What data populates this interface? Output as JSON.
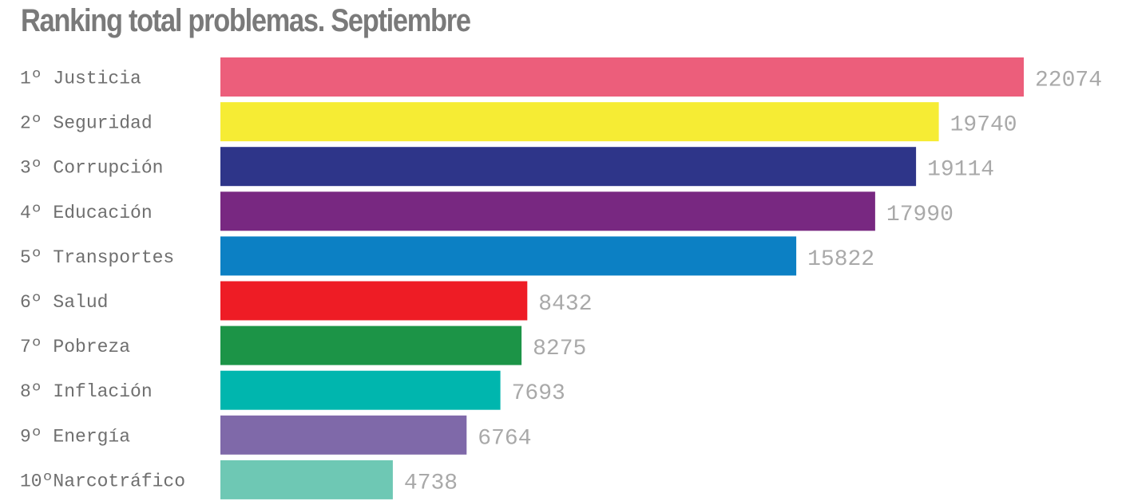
{
  "chart_data": {
    "type": "bar",
    "orientation": "horizontal",
    "title": "Ranking total problemas. Septiembre",
    "categories": [
      "1º Justicia",
      "2º Seguridad",
      "3º Corrupción",
      "4º Educación",
      "5º Transportes",
      "6º Salud",
      "7º Pobreza",
      "8º Inflación",
      "9º Energía",
      "10ºNarcotráfico"
    ],
    "values": [
      22074,
      19740,
      19114,
      17990,
      15822,
      8432,
      8275,
      7693,
      6764,
      4738
    ],
    "colors": [
      "#ec5e7b",
      "#f6ec34",
      "#2e3589",
      "#782881",
      "#0c80c4",
      "#ee1c25",
      "#1c9447",
      "#00b6ae",
      "#7f69a9",
      "#6ec8b4"
    ],
    "xlim": [
      0,
      22074
    ],
    "grid": false,
    "legend": "none",
    "data_labels": true
  }
}
